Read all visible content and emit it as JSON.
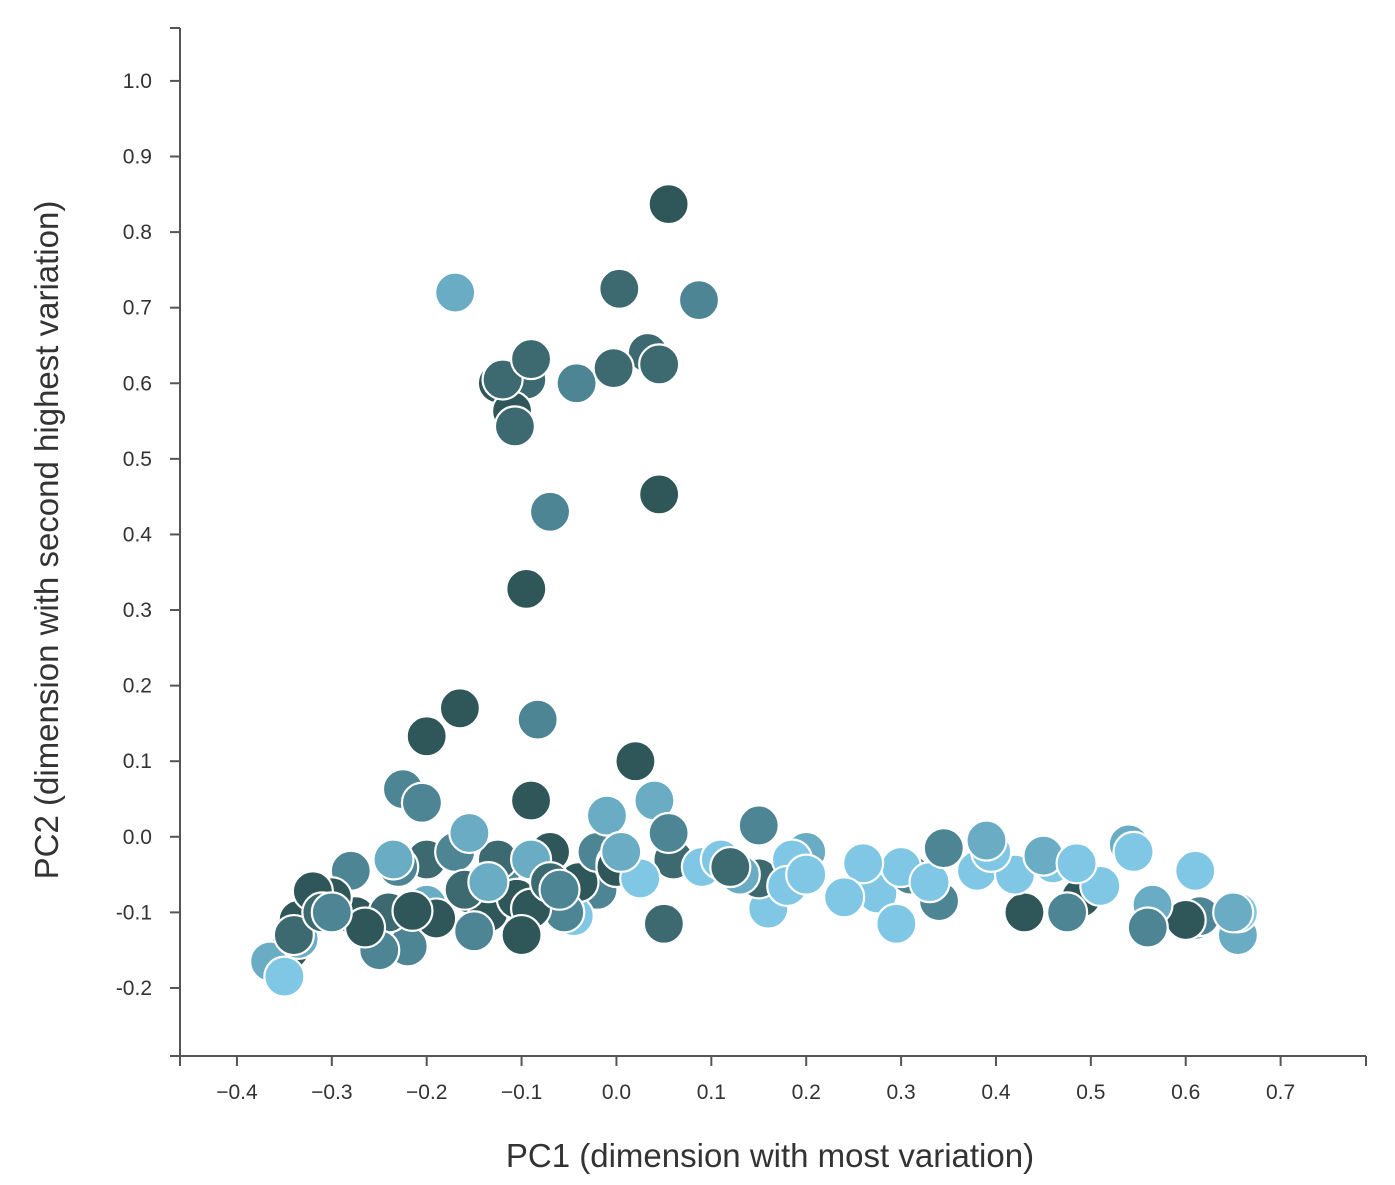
{
  "chart_data": {
    "type": "scatter",
    "title": "",
    "xlabel": "PC1 (dimension with most variation)",
    "ylabel": "PC2 (dimension with second highest variation)",
    "xlim": [
      -0.46,
      0.79
    ],
    "ylim": [
      -0.29,
      1.07
    ],
    "x_ticks": [
      -0.4,
      -0.3,
      -0.2,
      -0.1,
      0.0,
      0.1,
      0.2,
      0.3,
      0.4,
      0.5,
      0.6,
      0.7
    ],
    "x_tick_labels": [
      "−0.4",
      "−0.3",
      "−0.2",
      "−0.1",
      "0.0",
      "0.1",
      "0.2",
      "0.3",
      "0.4",
      "0.5",
      "0.6",
      "0.7"
    ],
    "y_ticks": [
      -0.2,
      -0.1,
      0.0,
      0.1,
      0.2,
      0.3,
      0.4,
      0.5,
      0.6,
      0.7,
      0.8,
      0.9,
      1.0
    ],
    "y_tick_labels": [
      "-0.2",
      "-0.1",
      "0.0",
      "0.1",
      "0.2",
      "0.3",
      "0.4",
      "0.5",
      "0.6",
      "0.7",
      "0.8",
      "0.9",
      "1.0"
    ],
    "grid": false,
    "legend": "none",
    "colors": {
      "darkest": "#2f5658",
      "dark": "#3d6a70",
      "mid": "#4e8595",
      "light": "#6aacc4",
      "lightest": "#80c7e5",
      "axis": "#555555",
      "text": "#333333"
    },
    "series": [
      {
        "color": "#2f5658",
        "points": [
          [
            0.055,
            0.837
          ],
          [
            0.045,
            0.453
          ],
          [
            -0.095,
            0.328
          ],
          [
            -0.09,
            0.048
          ],
          [
            0.02,
            0.1
          ],
          [
            -0.165,
            0.17
          ],
          [
            -0.2,
            0.133
          ],
          [
            -0.11,
            0.563
          ],
          [
            -0.125,
            0.6
          ],
          [
            -0.32,
            -0.072
          ],
          [
            -0.335,
            -0.11
          ],
          [
            -0.345,
            -0.15
          ],
          [
            -0.3,
            -0.08
          ],
          [
            -0.275,
            -0.105
          ],
          [
            -0.215,
            -0.098
          ],
          [
            -0.19,
            -0.108
          ],
          [
            -0.155,
            -0.075
          ],
          [
            -0.1,
            -0.13
          ],
          [
            -0.105,
            -0.082
          ],
          [
            -0.07,
            -0.02
          ],
          [
            0.0,
            -0.04
          ],
          [
            0.43,
            -0.1
          ],
          [
            0.49,
            -0.08
          ],
          [
            0.6,
            -0.11
          ],
          [
            -0.135,
            -0.1
          ],
          [
            -0.265,
            -0.12
          ],
          [
            -0.09,
            -0.095
          ],
          [
            -0.04,
            -0.06
          ]
        ]
      },
      {
        "color": "#3d6a70",
        "points": [
          [
            0.003,
            0.725
          ],
          [
            -0.09,
            0.632
          ],
          [
            -0.12,
            0.605
          ],
          [
            -0.095,
            0.605
          ],
          [
            -0.107,
            0.543
          ],
          [
            -0.003,
            0.62
          ],
          [
            0.033,
            0.64
          ],
          [
            0.045,
            0.625
          ],
          [
            0.0,
            -0.035
          ],
          [
            0.06,
            -0.03
          ],
          [
            -0.16,
            -0.07
          ],
          [
            -0.24,
            -0.1
          ],
          [
            -0.31,
            -0.1
          ],
          [
            -0.34,
            -0.13
          ],
          [
            0.15,
            -0.055
          ],
          [
            0.12,
            -0.04
          ],
          [
            0.05,
            -0.115
          ],
          [
            -0.125,
            -0.03
          ],
          [
            -0.07,
            -0.06
          ],
          [
            -0.2,
            -0.03
          ]
        ]
      },
      {
        "color": "#4e8595",
        "points": [
          [
            0.087,
            0.71
          ],
          [
            -0.042,
            0.6
          ],
          [
            -0.07,
            0.43
          ],
          [
            -0.083,
            0.155
          ],
          [
            -0.225,
            0.063
          ],
          [
            -0.205,
            0.045
          ],
          [
            -0.17,
            -0.02
          ],
          [
            -0.12,
            -0.04
          ],
          [
            0.055,
            0.005
          ],
          [
            -0.28,
            -0.045
          ],
          [
            -0.3,
            -0.1
          ],
          [
            -0.25,
            -0.15
          ],
          [
            -0.22,
            -0.145
          ],
          [
            -0.15,
            -0.125
          ],
          [
            -0.055,
            -0.1
          ],
          [
            -0.02,
            -0.07
          ],
          [
            0.15,
            0.015
          ],
          [
            0.31,
            -0.05
          ],
          [
            0.34,
            -0.085
          ],
          [
            0.345,
            -0.015
          ],
          [
            0.475,
            -0.1
          ],
          [
            0.56,
            -0.12
          ],
          [
            0.615,
            -0.105
          ],
          [
            -0.02,
            -0.02
          ],
          [
            -0.06,
            -0.07
          ],
          [
            -0.23,
            -0.04
          ]
        ]
      },
      {
        "color": "#6aacc4",
        "points": [
          [
            -0.17,
            0.72
          ],
          [
            -0.01,
            0.028
          ],
          [
            0.04,
            0.048
          ],
          [
            -0.235,
            -0.03
          ],
          [
            -0.155,
            0.005
          ],
          [
            -0.2,
            -0.09
          ],
          [
            -0.135,
            -0.06
          ],
          [
            0.2,
            -0.02
          ],
          [
            0.39,
            -0.005
          ],
          [
            0.45,
            -0.025
          ],
          [
            0.54,
            -0.01
          ],
          [
            0.565,
            -0.09
          ],
          [
            0.61,
            -0.11
          ],
          [
            0.655,
            -0.13
          ],
          [
            0.65,
            -0.1
          ],
          [
            -0.335,
            -0.135
          ],
          [
            -0.365,
            -0.165
          ],
          [
            0.13,
            -0.05
          ],
          [
            -0.09,
            -0.03
          ],
          [
            0.005,
            -0.02
          ]
        ]
      },
      {
        "color": "#80c7e5",
        "points": [
          [
            -0.35,
            -0.185
          ],
          [
            0.025,
            -0.055
          ],
          [
            0.09,
            -0.04
          ],
          [
            0.16,
            -0.095
          ],
          [
            0.18,
            -0.065
          ],
          [
            0.185,
            -0.03
          ],
          [
            0.24,
            -0.08
          ],
          [
            0.26,
            -0.035
          ],
          [
            0.275,
            -0.075
          ],
          [
            0.295,
            -0.115
          ],
          [
            0.3,
            -0.04
          ],
          [
            0.38,
            -0.045
          ],
          [
            0.395,
            -0.02
          ],
          [
            0.42,
            -0.05
          ],
          [
            0.46,
            -0.035
          ],
          [
            0.485,
            -0.035
          ],
          [
            0.51,
            -0.065
          ],
          [
            0.545,
            -0.02
          ],
          [
            0.61,
            -0.045
          ],
          [
            0.655,
            -0.1
          ],
          [
            0.2,
            -0.05
          ],
          [
            0.33,
            -0.06
          ],
          [
            -0.045,
            -0.105
          ],
          [
            0.11,
            -0.03
          ]
        ]
      }
    ]
  }
}
